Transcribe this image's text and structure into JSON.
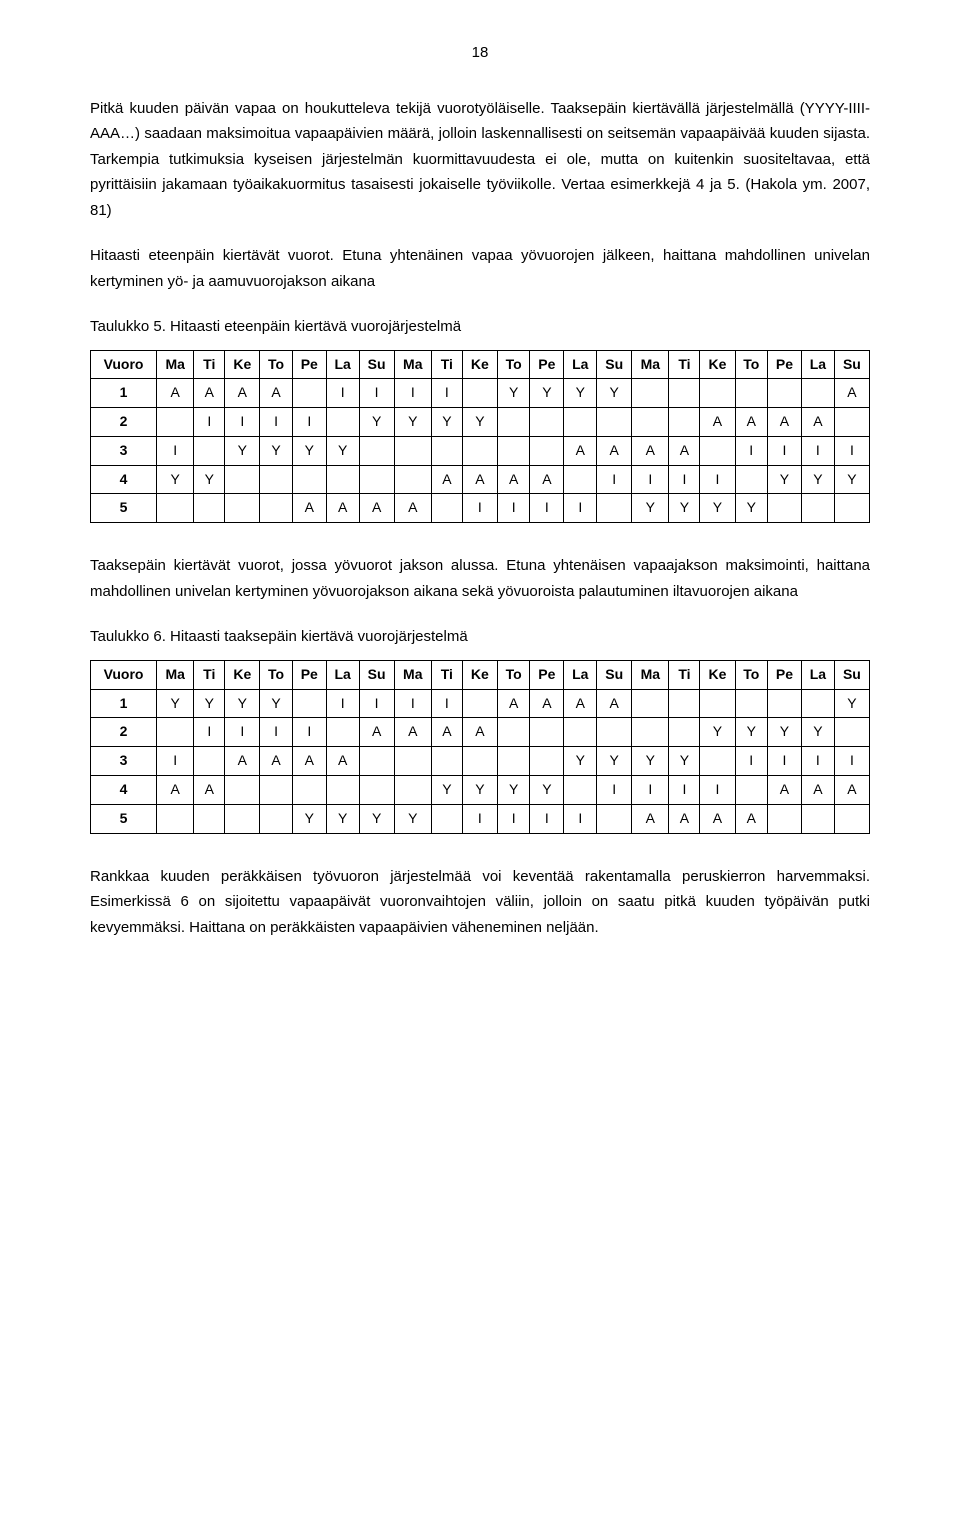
{
  "page_number": "18",
  "paragraphs": {
    "p1": "Pitkä kuuden päivän vapaa on houkutteleva tekijä vuorotyöläiselle. Taaksepäin kiertävällä järjestelmällä (YYYY-IIII-AAA…) saadaan maksimoitua vapaapäivien määrä, jolloin laskennallisesti on seitsemän vapaapäivää kuuden sijasta. Tarkempia tutkimuksia kyseisen järjestelmän kuormittavuudesta ei ole, mutta on kuitenkin suositeltavaa, että pyrittäisiin jakamaan työaikakuormitus tasaisesti jokaiselle työviikolle. Vertaa esimerkkejä 4 ja 5. (Hakola ym. 2007, 81)",
    "p2": "Hitaasti eteenpäin kiertävät vuorot. Etuna yhtenäinen vapaa yövuorojen jälkeen, haittana mahdollinen univelan kertyminen yö- ja aamuvuorojakson aikana",
    "p3": "Taaksepäin kiertävät vuorot, jossa yövuorot jakson alussa. Etuna yhtenäisen vapaajakson maksimointi, haittana mahdollinen univelan kertyminen yövuorojakson aikana sekä yövuoroista palautuminen iltavuorojen aikana",
    "p4": "Rankkaa kuuden peräkkäisen työvuoron järjestelmää voi keventää rakentamalla peruskierron harvemmaksi. Esimerkissä 6 on sijoitettu vapaapäivät vuoronvaihtojen väliin, jolloin on saatu pitkä kuuden työpäivän putki kevyemmäksi. Haittana on peräkkäisten vapaapäivien väheneminen neljään."
  },
  "table5": {
    "title": "Taulukko 5. Hitaasti eteenpäin kiertävä vuorojärjestelmä",
    "headers": [
      "Vuoro",
      "Ma",
      "Ti",
      "Ke",
      "To",
      "Pe",
      "La",
      "Su",
      "Ma",
      "Ti",
      "Ke",
      "To",
      "Pe",
      "La",
      "Su",
      "Ma",
      "Ti",
      "Ke",
      "To",
      "Pe",
      "La",
      "Su"
    ],
    "rows": [
      [
        "1",
        "A",
        "A",
        "A",
        "A",
        "",
        "I",
        "I",
        "I",
        "I",
        "",
        "Y",
        "Y",
        "Y",
        "Y",
        "",
        "",
        "",
        "",
        "",
        "",
        "A"
      ],
      [
        "2",
        "",
        "I",
        "I",
        "I",
        "I",
        "",
        "Y",
        "Y",
        "Y",
        "Y",
        "",
        "",
        "",
        "",
        "",
        "",
        "A",
        "A",
        "A",
        "A",
        ""
      ],
      [
        "3",
        "I",
        "",
        "Y",
        "Y",
        "Y",
        "Y",
        "",
        "",
        "",
        "",
        "",
        "",
        "A",
        "A",
        "A",
        "A",
        "",
        "I",
        "I",
        "I",
        "I"
      ],
      [
        "4",
        "Y",
        "Y",
        "",
        "",
        "",
        "",
        "",
        "",
        "A",
        "A",
        "A",
        "A",
        "",
        "I",
        "I",
        "I",
        "I",
        "",
        "Y",
        "Y",
        "Y"
      ],
      [
        "5",
        "",
        "",
        "",
        "",
        "A",
        "A",
        "A",
        "A",
        "",
        "I",
        "I",
        "I",
        "I",
        "",
        "Y",
        "Y",
        "Y",
        "Y",
        "",
        "",
        ""
      ]
    ]
  },
  "table6": {
    "title": "Taulukko 6. Hitaasti taaksepäin kiertävä vuorojärjestelmä",
    "headers": [
      "Vuoro",
      "Ma",
      "Ti",
      "Ke",
      "To",
      "Pe",
      "La",
      "Su",
      "Ma",
      "Ti",
      "Ke",
      "To",
      "Pe",
      "La",
      "Su",
      "Ma",
      "Ti",
      "Ke",
      "To",
      "Pe",
      "La",
      "Su"
    ],
    "rows": [
      [
        "1",
        "Y",
        "Y",
        "Y",
        "Y",
        "",
        "I",
        "I",
        "I",
        "I",
        "",
        "A",
        "A",
        "A",
        "A",
        "",
        "",
        "",
        "",
        "",
        "",
        "Y"
      ],
      [
        "2",
        "",
        "I",
        "I",
        "I",
        "I",
        "",
        "A",
        "A",
        "A",
        "A",
        "",
        "",
        "",
        "",
        "",
        "",
        "Y",
        "Y",
        "Y",
        "Y",
        ""
      ],
      [
        "3",
        "I",
        "",
        "A",
        "A",
        "A",
        "A",
        "",
        "",
        "",
        "",
        "",
        "",
        "Y",
        "Y",
        "Y",
        "Y",
        "",
        "I",
        "I",
        "I",
        "I"
      ],
      [
        "4",
        "A",
        "A",
        "",
        "",
        "",
        "",
        "",
        "",
        "Y",
        "Y",
        "Y",
        "Y",
        "",
        "I",
        "I",
        "I",
        "I",
        "",
        "A",
        "A",
        "A"
      ],
      [
        "5",
        "",
        "",
        "",
        "",
        "Y",
        "Y",
        "Y",
        "Y",
        "",
        "I",
        "I",
        "I",
        "I",
        "",
        "A",
        "A",
        "A",
        "A",
        "",
        "",
        ""
      ]
    ]
  }
}
